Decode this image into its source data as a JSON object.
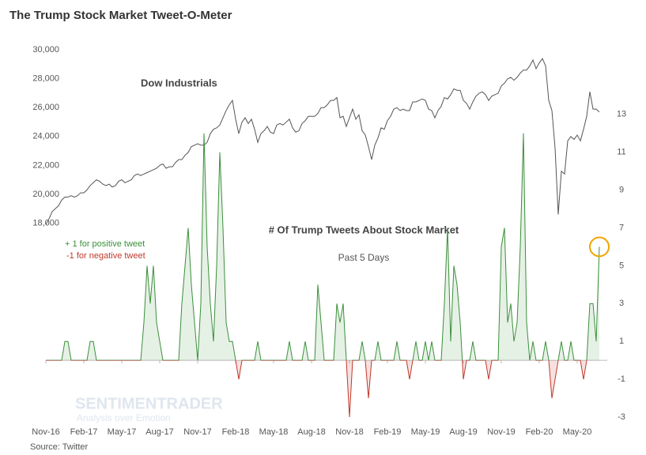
{
  "chart_data": {
    "type": "line",
    "title": "The Trump Stock Market Tweet-O-Meter",
    "source": "Source: Twitter",
    "watermark": "SENTIMENTRADER",
    "watermark_tagline": "Analysis over Emotion",
    "annotations": {
      "positive": "+ 1 for positive tweet",
      "negative": "-1 for negative tweet",
      "subtitle": "Past 5 Days"
    },
    "categories": [
      "Nov-16",
      null,
      null,
      null,
      null,
      null,
      null,
      null,
      null,
      null,
      null,
      null,
      "Feb-17",
      null,
      null,
      null,
      null,
      null,
      null,
      null,
      null,
      null,
      null,
      null,
      "May-17",
      null,
      null,
      null,
      null,
      null,
      null,
      null,
      null,
      null,
      null,
      null,
      "Aug-17",
      null,
      null,
      null,
      null,
      null,
      null,
      null,
      null,
      null,
      null,
      null,
      "Nov-17",
      null,
      null,
      null,
      null,
      null,
      null,
      null,
      null,
      null,
      null,
      null,
      "Feb-18",
      null,
      null,
      null,
      null,
      null,
      null,
      null,
      null,
      null,
      null,
      null,
      "May-18",
      null,
      null,
      null,
      null,
      null,
      null,
      null,
      null,
      null,
      null,
      null,
      "Aug-18",
      null,
      null,
      null,
      null,
      null,
      null,
      null,
      null,
      null,
      null,
      null,
      "Nov-18",
      null,
      null,
      null,
      null,
      null,
      null,
      null,
      null,
      null,
      null,
      null,
      "Feb-19",
      null,
      null,
      null,
      null,
      null,
      null,
      null,
      null,
      null,
      null,
      null,
      "May-19",
      null,
      null,
      null,
      null,
      null,
      null,
      null,
      null,
      null,
      null,
      null,
      "Aug-19",
      null,
      null,
      null,
      null,
      null,
      null,
      null,
      null,
      null,
      null,
      null,
      "Nov-19",
      null,
      null,
      null,
      null,
      null,
      null,
      null,
      null,
      null,
      null,
      null,
      "Feb-20",
      null,
      null,
      null,
      null,
      null,
      null,
      null,
      null,
      null,
      null,
      null,
      "May-20",
      null,
      null,
      null,
      null,
      null,
      null,
      null
    ],
    "series": [
      {
        "name": "Dow Industrials",
        "color": "#555555",
        "axis": "y",
        "values": [
          17900,
          18300,
          18800,
          19000,
          19200,
          19600,
          19800,
          19800,
          19900,
          19800,
          19900,
          20100,
          20100,
          20300,
          20600,
          20800,
          21000,
          20900,
          20700,
          20600,
          20700,
          20500,
          20600,
          20900,
          21000,
          20800,
          20900,
          21000,
          21300,
          21400,
          21300,
          21400,
          21500,
          21600,
          21700,
          21800,
          22000,
          22100,
          21800,
          21900,
          21900,
          22200,
          22400,
          22400,
          22700,
          22900,
          23300,
          23400,
          23500,
          23400,
          23400,
          23600,
          24200,
          24500,
          24600,
          24800,
          25300,
          25800,
          26200,
          26500,
          25200,
          24200,
          25000,
          25300,
          24900,
          25200,
          24500,
          23600,
          24200,
          24400,
          24700,
          24300,
          24200,
          24800,
          24900,
          24800,
          25000,
          25200,
          24600,
          24300,
          24400,
          24900,
          25100,
          25400,
          25400,
          25400,
          25600,
          26000,
          26000,
          26200,
          26500,
          26500,
          26700,
          25300,
          25400,
          24700,
          25300,
          25900,
          25200,
          25500,
          24400,
          24100,
          23300,
          22400,
          23400,
          23900,
          24600,
          24500,
          25100,
          25400,
          25900,
          26000,
          25800,
          25900,
          25800,
          25800,
          26400,
          26400,
          26500,
          26600,
          26500,
          25900,
          25800,
          25300,
          25800,
          26100,
          26700,
          26600,
          26900,
          27300,
          27200,
          27200,
          26500,
          26300,
          25900,
          26400,
          26800,
          27000,
          27100,
          26900,
          26500,
          26800,
          26900,
          27000,
          27500,
          27700,
          28000,
          28100,
          27900,
          28100,
          28400,
          28600,
          28600,
          28900,
          29300,
          28700,
          29100,
          29400,
          28900,
          26500,
          25800,
          23200,
          18600,
          21600,
          21400,
          23700,
          24000,
          23800,
          24100,
          23700,
          24500,
          25400,
          27100,
          25900,
          25900,
          25700
        ]
      },
      {
        "name": "# Of Trump Tweets About Stock Market",
        "color": "#3a8f3a",
        "negative_color": "#c0392b",
        "axis": "y2",
        "values": [
          0,
          0,
          0,
          0,
          0,
          0,
          1,
          1,
          0,
          0,
          0,
          0,
          0,
          0,
          1,
          1,
          0,
          0,
          0,
          0,
          0,
          0,
          0,
          0,
          0,
          0,
          0,
          0,
          0,
          0,
          0,
          2,
          5,
          3,
          5,
          2,
          1,
          0,
          0,
          0,
          0,
          0,
          0,
          3,
          5,
          7,
          4,
          2,
          0,
          3,
          12,
          6,
          3,
          1,
          5,
          11,
          7,
          2,
          1,
          1,
          0,
          -1,
          0,
          0,
          0,
          0,
          0,
          1,
          0,
          0,
          0,
          0,
          0,
          0,
          0,
          0,
          0,
          1,
          0,
          0,
          0,
          0,
          1,
          0,
          0,
          0,
          4,
          2,
          0,
          0,
          0,
          0,
          3,
          2,
          3,
          0,
          -3,
          0,
          0,
          0,
          1,
          0,
          -2,
          0,
          0,
          1,
          0,
          0,
          0,
          0,
          0,
          1,
          0,
          0,
          0,
          -1,
          0,
          1,
          0,
          0,
          1,
          0,
          1,
          0,
          0,
          0,
          3,
          7,
          1,
          5,
          4,
          2,
          -1,
          0,
          0,
          1,
          0,
          0,
          0,
          0,
          -1,
          0,
          0,
          0,
          6,
          7,
          2,
          3,
          1,
          2,
          6,
          12,
          2,
          0,
          1,
          0,
          0,
          0,
          1,
          0,
          -2,
          -1,
          0,
          1,
          0,
          0,
          1,
          0,
          0,
          0,
          -1,
          0,
          3,
          3,
          1,
          6
        ]
      }
    ],
    "ylim": [
      3900,
      30450
    ],
    "yticks": [
      {
        "value": 18000,
        "label": "18,000"
      },
      {
        "value": 20000,
        "label": "20,000"
      },
      {
        "value": 22000,
        "label": "22,000"
      },
      {
        "value": 24000,
        "label": "24,000"
      },
      {
        "value": 26000,
        "label": "26,000"
      },
      {
        "value": 28000,
        "label": "28,000"
      },
      {
        "value": 30000,
        "label": "30,000"
      }
    ],
    "y2lim": [
      -3.5,
      16.75
    ],
    "y2ticks": [
      -3,
      -1,
      1,
      3,
      5,
      7,
      9,
      11,
      13
    ],
    "grid": false
  }
}
